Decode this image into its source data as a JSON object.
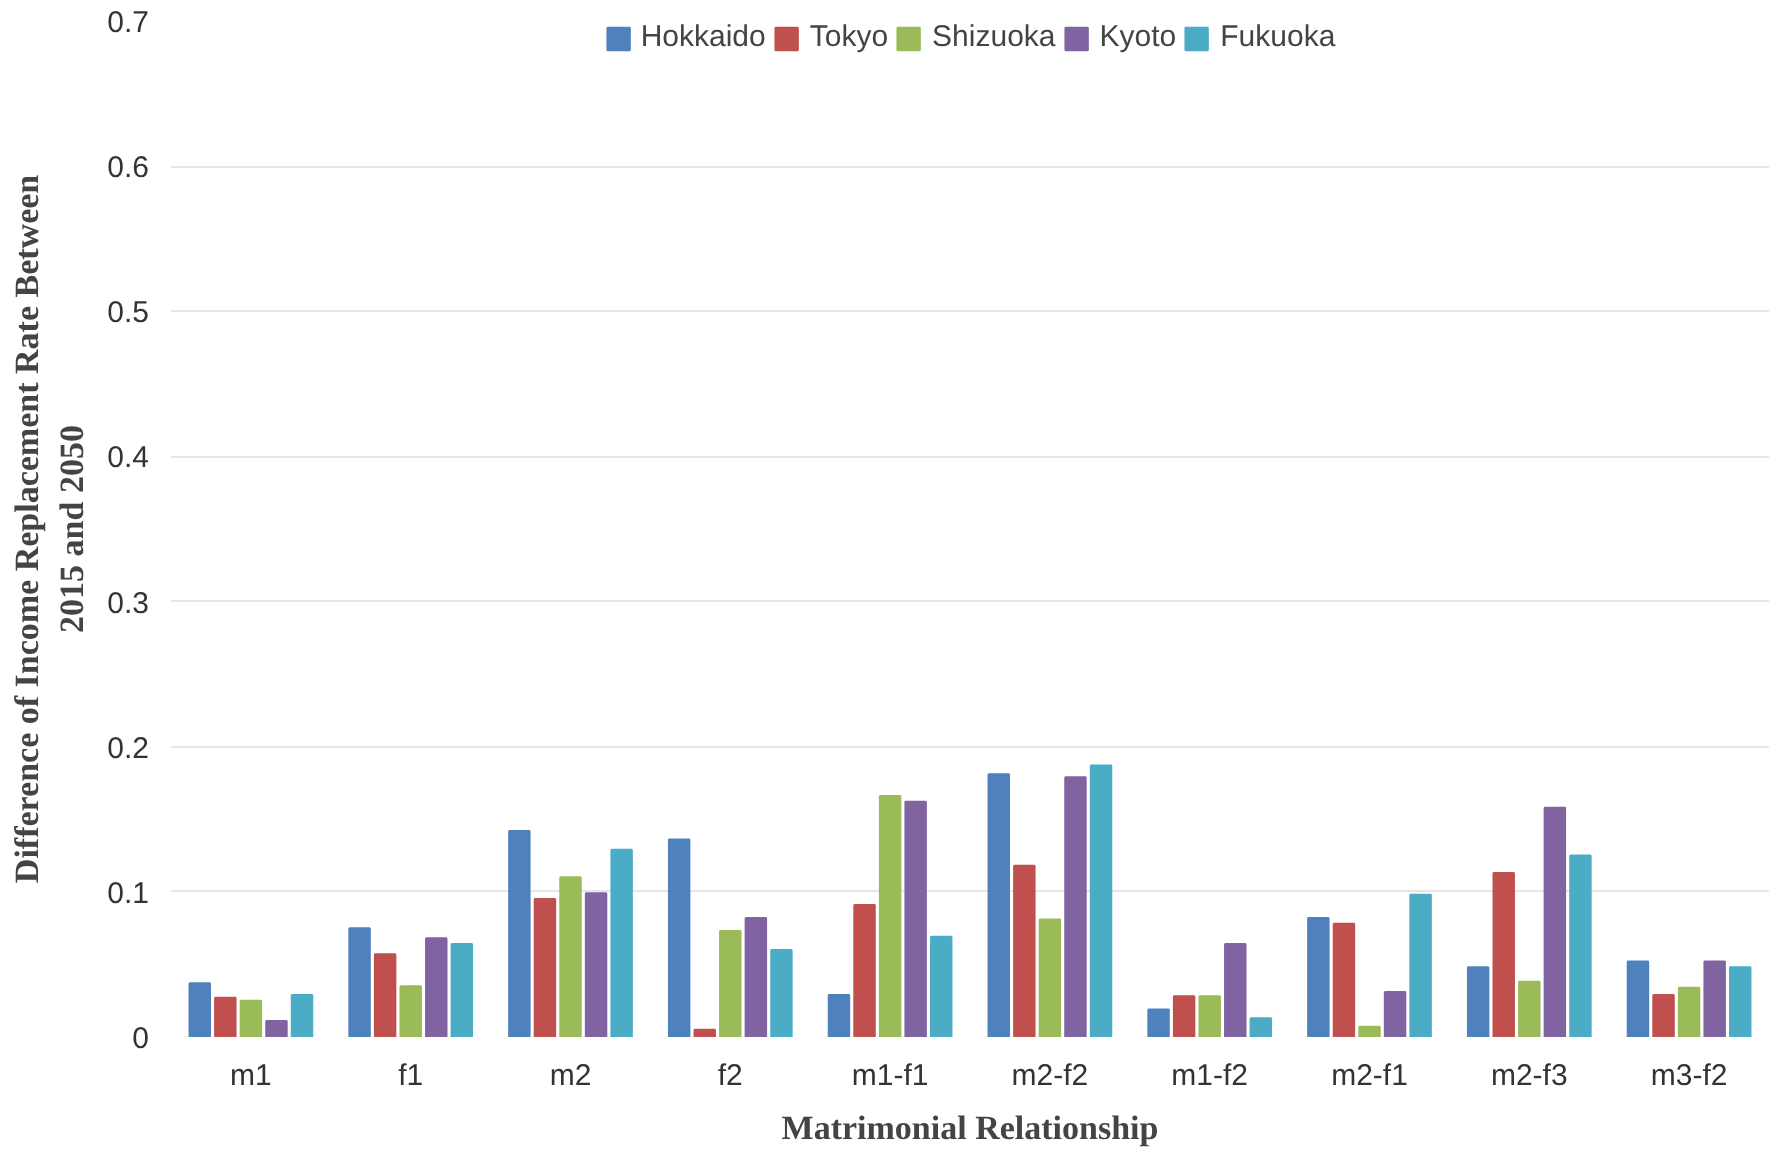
{
  "chart_data": {
    "type": "bar",
    "xlabel": "Matrimonial Relationship",
    "ylabel": "Difference of Income Replacement Rate Between 2015 and 2050",
    "categories": [
      "m1",
      "f1",
      "m2",
      "f2",
      "m1-f1",
      "m2-f2",
      "m1-f2",
      "m2-f1",
      "m2-f3",
      "m3-f2"
    ],
    "series": [
      {
        "name": "Hokkaido",
        "color": "#4f81bd",
        "values": [
          0.037,
          0.075,
          0.142,
          0.136,
          0.029,
          0.181,
          0.019,
          0.082,
          0.048,
          0.052
        ]
      },
      {
        "name": "Tokyo",
        "color": "#c0504d",
        "values": [
          0.027,
          0.057,
          0.095,
          0.005,
          0.091,
          0.118,
          0.028,
          0.078,
          0.113,
          0.029
        ]
      },
      {
        "name": "Shizuoka",
        "color": "#9bbb59",
        "values": [
          0.025,
          0.035,
          0.11,
          0.073,
          0.166,
          0.081,
          0.028,
          0.007,
          0.038,
          0.034
        ]
      },
      {
        "name": "Kyoto",
        "color": "#8064a2",
        "values": [
          0.011,
          0.068,
          0.099,
          0.082,
          0.162,
          0.179,
          0.064,
          0.031,
          0.158,
          0.052
        ]
      },
      {
        "name": "Fukuoka",
        "color": "#4bacc6",
        "values": [
          0.029,
          0.064,
          0.129,
          0.06,
          0.069,
          0.187,
          0.013,
          0.098,
          0.125,
          0.048
        ]
      }
    ],
    "ylim": [
      0,
      0.7
    ],
    "yticks": [
      0,
      0.1,
      0.2,
      0.3,
      0.4,
      0.5,
      0.6,
      0.7
    ],
    "grid": "y",
    "legend": "top"
  }
}
